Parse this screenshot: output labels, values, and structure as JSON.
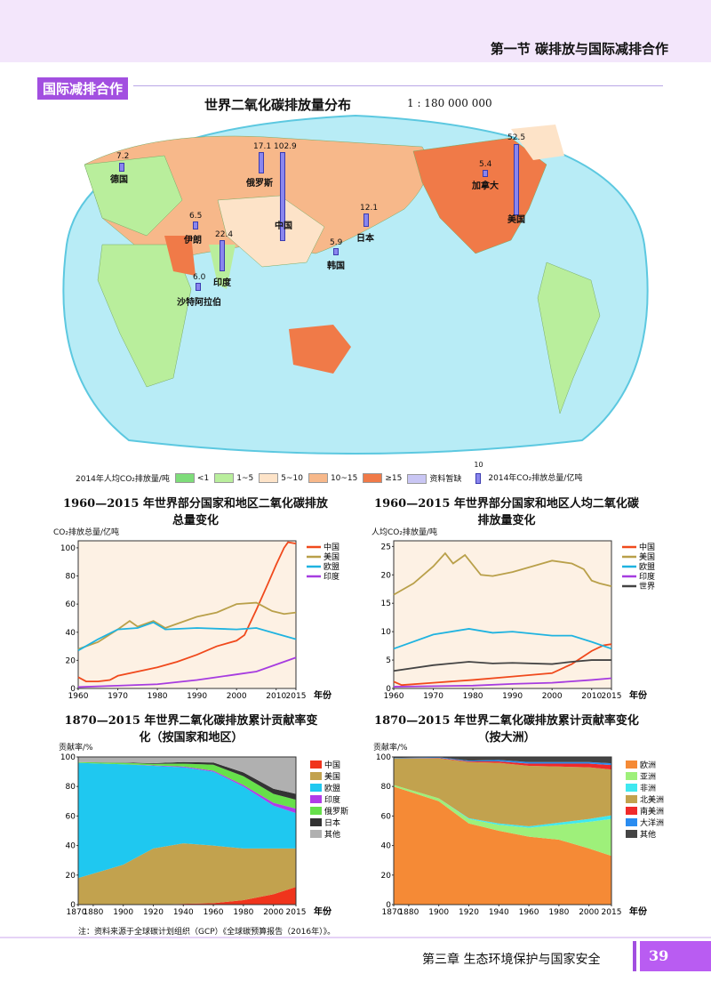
{
  "header": {
    "section_title": "第一节  碳排放与国际减排合作"
  },
  "section_tag": "国际减排合作",
  "map": {
    "title": "世界二氧化碳排放量分布",
    "scale": "1 : 180 000 000",
    "countries": [
      {
        "name": "德国",
        "value": "7.2"
      },
      {
        "name": "俄罗斯",
        "value": "17.1"
      },
      {
        "name": "中国",
        "value": "102.9"
      },
      {
        "name": "美国",
        "value": "52.5"
      },
      {
        "name": "加拿大",
        "value": "5.4"
      },
      {
        "name": "日本",
        "value": "12.1"
      },
      {
        "name": "韩国",
        "value": "5.9"
      },
      {
        "name": "伊朗",
        "value": "6.5"
      },
      {
        "name": "印度",
        "value": "22.4"
      },
      {
        "name": "沙特阿拉伯",
        "value": "6.0"
      }
    ],
    "legend": {
      "title": "2014年人均CO₂排放量/吨",
      "classes": [
        {
          "label": "<1",
          "color": "#7edc7a"
        },
        {
          "label": "1~5",
          "color": "#b9ee9c"
        },
        {
          "label": "5~10",
          "color": "#fde3c8"
        },
        {
          "label": "10~15",
          "color": "#f7b88a"
        },
        {
          "label": "≥15",
          "color": "#f07a48"
        },
        {
          "label": "资料暂缺",
          "color": "#c9c6f4"
        }
      ],
      "bar_value": "10",
      "bar_label": "2014年CO₂排放总量/亿吨"
    }
  },
  "chart_data": [
    {
      "type": "line",
      "title": "1960—2015 年世界部分国家和地区二氧化碳排放总量变化",
      "ylabel": "CO₂排放总量/亿吨",
      "xlabel": "年份",
      "ylim": [
        0,
        105
      ],
      "xlim": [
        1960,
        2015
      ],
      "yticks": [
        "0",
        "20",
        "40",
        "60",
        "80",
        "100"
      ],
      "xticks": [
        "1960",
        "1970",
        "1980",
        "1990",
        "2000",
        "2010",
        "2015"
      ],
      "x_unit": "年份",
      "series": [
        {
          "name": "中国",
          "color": "#f0491c",
          "points": [
            [
              1960,
              8
            ],
            [
              1962,
              5
            ],
            [
              1965,
              5
            ],
            [
              1968,
              6
            ],
            [
              1970,
              9
            ],
            [
              1975,
              12
            ],
            [
              1980,
              15
            ],
            [
              1985,
              19
            ],
            [
              1990,
              24
            ],
            [
              1995,
              30
            ],
            [
              2000,
              34
            ],
            [
              2002,
              38
            ],
            [
              2005,
              56
            ],
            [
              2008,
              75
            ],
            [
              2010,
              88
            ],
            [
              2012,
              100
            ],
            [
              2013,
              104
            ],
            [
              2015,
              103
            ]
          ]
        },
        {
          "name": "美国",
          "color": "#b9a04a",
          "points": [
            [
              1960,
              28
            ],
            [
              1965,
              33
            ],
            [
              1970,
              42
            ],
            [
              1973,
              48
            ],
            [
              1975,
              44
            ],
            [
              1979,
              48
            ],
            [
              1982,
              43
            ],
            [
              1985,
              46
            ],
            [
              1990,
              51
            ],
            [
              1995,
              54
            ],
            [
              2000,
              60
            ],
            [
              2005,
              61
            ],
            [
              2009,
              55
            ],
            [
              2012,
              53
            ],
            [
              2015,
              54
            ]
          ]
        },
        {
          "name": "欧盟",
          "color": "#1fb3e0",
          "points": [
            [
              1960,
              27
            ],
            [
              1965,
              35
            ],
            [
              1970,
              42
            ],
            [
              1975,
              43
            ],
            [
              1979,
              47
            ],
            [
              1982,
              42
            ],
            [
              1990,
              43
            ],
            [
              2000,
              42
            ],
            [
              2005,
              43
            ],
            [
              2010,
              39
            ],
            [
              2015,
              35
            ]
          ]
        },
        {
          "name": "印度",
          "color": "#a63ce0",
          "points": [
            [
              1960,
              1
            ],
            [
              1970,
              2
            ],
            [
              1980,
              3
            ],
            [
              1990,
              6
            ],
            [
              2000,
              10
            ],
            [
              2005,
              12
            ],
            [
              2010,
              17
            ],
            [
              2015,
              22
            ]
          ]
        }
      ]
    },
    {
      "type": "line",
      "title": "1960—2015 年世界部分国家和地区人均二氧化碳排放量变化",
      "ylabel": "人均CO₂排放量/吨",
      "xlabel": "年份",
      "ylim": [
        0,
        26
      ],
      "xlim": [
        1960,
        2015
      ],
      "yticks": [
        "0",
        "5",
        "10",
        "15",
        "20",
        "25"
      ],
      "xticks": [
        "1960",
        "1970",
        "1980",
        "1990",
        "2000",
        "2010",
        "2015"
      ],
      "x_unit": "年份",
      "series": [
        {
          "name": "中国",
          "color": "#f0491c",
          "points": [
            [
              1960,
              1.2
            ],
            [
              1962,
              0.6
            ],
            [
              1970,
              1
            ],
            [
              1980,
              1.5
            ],
            [
              1990,
              2.1
            ],
            [
              2000,
              2.7
            ],
            [
              2005,
              4.3
            ],
            [
              2010,
              6.6
            ],
            [
              2013,
              7.6
            ],
            [
              2015,
              7.8
            ]
          ]
        },
        {
          "name": "美国",
          "color": "#b9a04a",
          "points": [
            [
              1960,
              16.5
            ],
            [
              1965,
              18.5
            ],
            [
              1970,
              21.5
            ],
            [
              1973,
              23.8
            ],
            [
              1975,
              22
            ],
            [
              1978,
              23.5
            ],
            [
              1982,
              20
            ],
            [
              1985,
              19.8
            ],
            [
              1990,
              20.5
            ],
            [
              1995,
              21.5
            ],
            [
              2000,
              22.5
            ],
            [
              2005,
              22
            ],
            [
              2008,
              21
            ],
            [
              2010,
              19
            ],
            [
              2012,
              18.5
            ],
            [
              2015,
              18
            ]
          ]
        },
        {
          "name": "欧盟",
          "color": "#1fb3e0",
          "points": [
            [
              1960,
              7
            ],
            [
              1970,
              9.5
            ],
            [
              1979,
              10.5
            ],
            [
              1985,
              9.8
            ],
            [
              1990,
              10
            ],
            [
              2000,
              9.3
            ],
            [
              2005,
              9.3
            ],
            [
              2010,
              8.2
            ],
            [
              2015,
              7
            ]
          ]
        },
        {
          "name": "印度",
          "color": "#a63ce0",
          "points": [
            [
              1960,
              0.3
            ],
            [
              1980,
              0.5
            ],
            [
              1990,
              0.8
            ],
            [
              2000,
              1
            ],
            [
              2010,
              1.5
            ],
            [
              2015,
              1.8
            ]
          ]
        },
        {
          "name": "世界",
          "color": "#444444",
          "points": [
            [
              1960,
              3.1
            ],
            [
              1970,
              4.1
            ],
            [
              1979,
              4.7
            ],
            [
              1985,
              4.4
            ],
            [
              1990,
              4.5
            ],
            [
              2000,
              4.3
            ],
            [
              2005,
              4.7
            ],
            [
              2010,
              5
            ],
            [
              2015,
              5
            ]
          ]
        }
      ]
    },
    {
      "type": "area",
      "stacked": true,
      "title": "1870—2015 年世界二氧化碳排放累计贡献率变化（按国家和地区）",
      "ylabel": "贡献率/%",
      "xlabel": "年份",
      "ylim": [
        0,
        100
      ],
      "xlim": [
        1870,
        2015
      ],
      "yticks": [
        "0",
        "20",
        "40",
        "60",
        "80",
        "100"
      ],
      "xticks": [
        "1870",
        "1880",
        "1900",
        "1920",
        "1940",
        "1960",
        "1980",
        "2000",
        "2015"
      ],
      "x_unit": "年份",
      "x": [
        1870,
        1900,
        1920,
        1940,
        1960,
        1980,
        2000,
        2015
      ],
      "series": [
        {
          "name": "中国",
          "color": "#f0341c",
          "values": [
            0,
            0,
            0,
            0.5,
            1,
            3,
            7,
            12
          ]
        },
        {
          "name": "美国",
          "color": "#c2a24e",
          "values": [
            18,
            27,
            38,
            41,
            39,
            35,
            31,
            26
          ]
        },
        {
          "name": "欧盟",
          "color": "#1fc8f0",
          "values": [
            78,
            68,
            56,
            51.5,
            50,
            42,
            29,
            24
          ]
        },
        {
          "name": "印度",
          "color": "#b13ce8",
          "values": [
            0,
            0,
            0.3,
            0.5,
            0.7,
            1,
            2,
            3
          ]
        },
        {
          "name": "俄罗斯",
          "color": "#66e04a",
          "values": [
            0.5,
            1,
            1,
            2,
            4,
            6,
            6,
            6
          ]
        },
        {
          "name": "日本",
          "color": "#333333",
          "values": [
            0,
            0.2,
            0.5,
            1,
            1.5,
            2.5,
            3.5,
            4
          ]
        },
        {
          "name": "其他",
          "color": "#b0b0b0",
          "values": [
            3.5,
            3.8,
            4.2,
            3.5,
            3.8,
            10.5,
            21.5,
            25
          ]
        }
      ]
    },
    {
      "type": "area",
      "stacked": true,
      "title": "1870—2015 年世界二氧化碳排放累计贡献率变化（按大洲）",
      "ylabel": "贡献率/%",
      "xlabel": "年份",
      "ylim": [
        0,
        100
      ],
      "xlim": [
        1870,
        2015
      ],
      "yticks": [
        "0",
        "20",
        "40",
        "60",
        "80",
        "100"
      ],
      "xticks": [
        "1870",
        "1880",
        "1900",
        "1920",
        "1940",
        "1960",
        "1980",
        "2000",
        "2015"
      ],
      "x_unit": "年份",
      "x": [
        1870,
        1900,
        1920,
        1940,
        1960,
        1980,
        2000,
        2015
      ],
      "series": [
        {
          "name": "欧洲",
          "color": "#f58a36",
          "values": [
            80,
            70,
            55,
            50,
            46,
            44,
            38,
            33
          ]
        },
        {
          "name": "亚洲",
          "color": "#9ef07a",
          "values": [
            1,
            2,
            3,
            4,
            6,
            10,
            18,
            25
          ]
        },
        {
          "name": "非洲",
          "color": "#3fe8f0",
          "values": [
            0,
            0,
            0.5,
            1,
            1,
            1.5,
            2,
            2.5
          ]
        },
        {
          "name": "北美洲",
          "color": "#c2a24e",
          "values": [
            18,
            27,
            38,
            41,
            41,
            38,
            35,
            31
          ]
        },
        {
          "name": "南美洲",
          "color": "#f02a2a",
          "values": [
            0,
            0.3,
            0.5,
            1,
            1.5,
            2,
            2.5,
            3
          ]
        },
        {
          "name": "大洋洲",
          "color": "#2a8cf0",
          "values": [
            0.3,
            0.5,
            0.5,
            1,
            1,
            1,
            1,
            1.2
          ]
        },
        {
          "name": "其他",
          "color": "#444444",
          "values": [
            0.7,
            0.2,
            2.5,
            2,
            3.5,
            3.5,
            3.5,
            4.3
          ]
        }
      ]
    }
  ],
  "note": "注：资料来源于全球碳计划组织（GCP）《全球碳预算报告（2016年）》。",
  "footer": {
    "chapter": "第三章    生态环境保护与国家安全",
    "page": "39"
  }
}
